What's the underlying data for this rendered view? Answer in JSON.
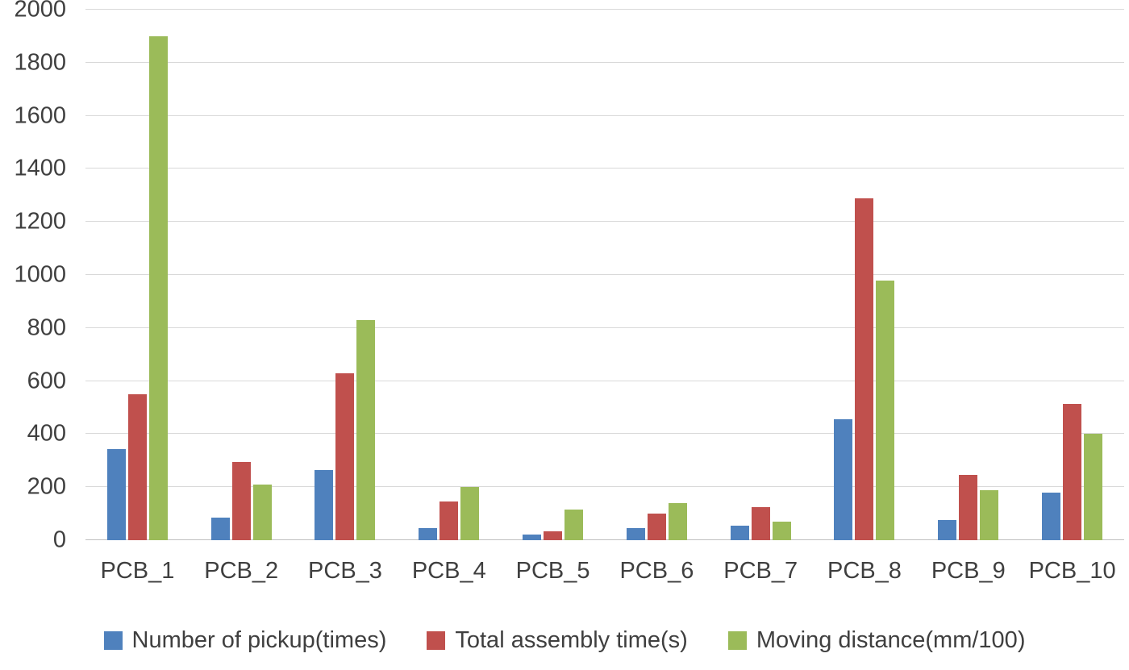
{
  "chart_data": {
    "type": "bar",
    "title": "",
    "categories": [
      "PCB_1",
      "PCB_2",
      "PCB_3",
      "PCB_4",
      "PCB_5",
      "PCB_6",
      "PCB_7",
      "PCB_8",
      "PCB_9",
      "PCB_10"
    ],
    "series": [
      {
        "name": "Number of pickup(times)",
        "color": "#4F81BD",
        "values": [
          345,
          85,
          265,
          45,
          20,
          45,
          55,
          455,
          75,
          180
        ]
      },
      {
        "name": "Total assembly time(s)",
        "color": "#C0504D",
        "values": [
          550,
          295,
          630,
          145,
          35,
          100,
          125,
          1290,
          245,
          515
        ]
      },
      {
        "name": "Moving distance(mm/100)",
        "color": "#9BBB59",
        "values": [
          1900,
          210,
          830,
          200,
          115,
          140,
          70,
          980,
          190,
          400
        ]
      }
    ],
    "ylim": [
      0,
      2000
    ],
    "ytick_step": 200,
    "grid": true,
    "legend_position": "bottom",
    "xlabel": "",
    "ylabel": ""
  },
  "style_colors": {
    "gridline": "#d9d9d9",
    "axis_line": "#bfbfbf",
    "tick_text": "#3f3f3f"
  }
}
